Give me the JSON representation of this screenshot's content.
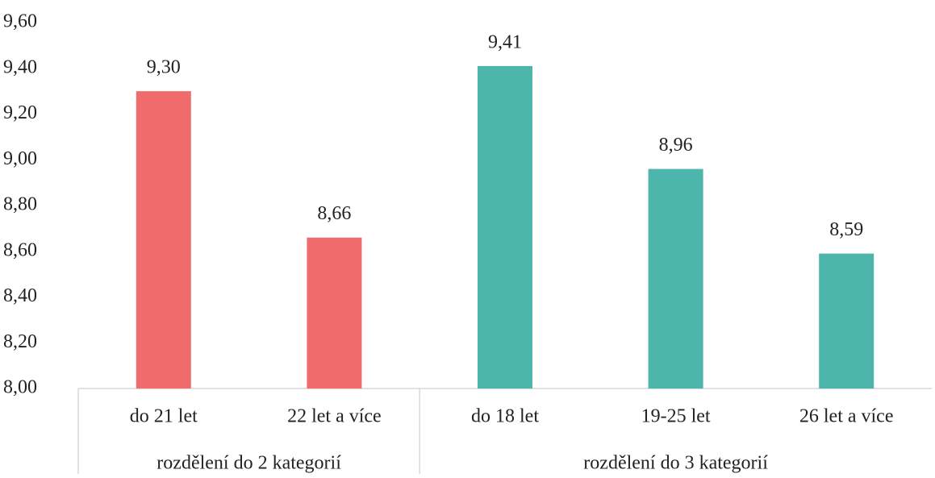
{
  "chart_data": {
    "type": "bar",
    "groups": [
      {
        "name": "rozdělení do 2 kategorií",
        "color": "#f06c6c",
        "categories": [
          "do 21 let",
          "22 let a více"
        ],
        "values": [
          9.3,
          8.66
        ],
        "value_labels": [
          "9,30",
          "8,66"
        ]
      },
      {
        "name": "rozdělení do 3 kategorií",
        "color": "#4db6ac",
        "categories": [
          "do 18 let",
          "19-25 let",
          "26 let a více"
        ],
        "values": [
          9.41,
          8.96,
          8.59
        ],
        "value_labels": [
          "9,41",
          "8,96",
          "8,59"
        ]
      }
    ],
    "ylim": [
      8.0,
      9.6
    ],
    "yticks": [
      {
        "value": 8.0,
        "label": "8,00"
      },
      {
        "value": 8.2,
        "label": "8,20"
      },
      {
        "value": 8.4,
        "label": "8,40"
      },
      {
        "value": 8.6,
        "label": "8,60"
      },
      {
        "value": 8.8,
        "label": "8,80"
      },
      {
        "value": 9.0,
        "label": "9,00"
      },
      {
        "value": 9.2,
        "label": "9,20"
      },
      {
        "value": 9.4,
        "label": "9,40"
      },
      {
        "value": 9.6,
        "label": "9,60"
      }
    ],
    "grid": false
  }
}
